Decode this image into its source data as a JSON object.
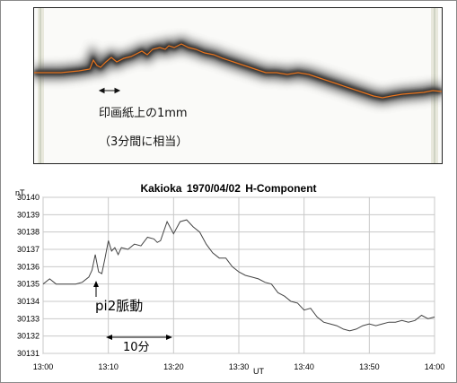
{
  "photo": {
    "caption_line1": "印画紙上の1mm",
    "caption_line2": "（3分間に相当）"
  },
  "chart_data": {
    "type": "line",
    "title": "Kakioka  1970/04/02   H-Component",
    "ylabel": "nT",
    "xlabel": "UT",
    "x_ticks": [
      "13:00",
      "13:10",
      "13:20",
      "13:30",
      "13:40",
      "13:50",
      "14:00"
    ],
    "y_ticks": [
      30131,
      30132,
      30133,
      30134,
      30135,
      30136,
      30137,
      30138,
      30139,
      30140
    ],
    "xlim": [
      "13:00",
      "14:00"
    ],
    "ylim": [
      30131,
      30140
    ],
    "grid": true,
    "series": [
      {
        "x": [
          "13:00",
          "13:01",
          "13:02",
          "13:03",
          "13:04",
          "13:05",
          "13:06",
          "13:07",
          "13:07:30",
          "13:08",
          "13:08:30",
          "13:09",
          "13:09:30",
          "13:10",
          "13:10:30",
          "13:11",
          "13:11:30",
          "13:12",
          "13:13",
          "13:14",
          "13:15",
          "13:16",
          "13:17",
          "13:17:30",
          "13:18",
          "13:19",
          "13:20",
          "13:21",
          "13:22",
          "13:23",
          "13:24",
          "13:25",
          "13:26",
          "13:27",
          "13:28",
          "13:29",
          "13:30",
          "13:31",
          "13:32",
          "13:33",
          "13:34",
          "13:35",
          "13:36",
          "13:37",
          "13:38",
          "13:39",
          "13:40",
          "13:41",
          "13:42",
          "13:43",
          "13:44",
          "13:45",
          "13:46",
          "13:47",
          "13:48",
          "13:49",
          "13:50",
          "13:51",
          "13:52",
          "13:53",
          "13:54",
          "13:55",
          "13:56",
          "13:57",
          "13:58",
          "13:59",
          "14:00"
        ],
        "values": [
          30135.0,
          30135.3,
          30135.0,
          30135.0,
          30135.0,
          30135.0,
          30135.1,
          30135.4,
          30135.8,
          30136.7,
          30135.7,
          30135.6,
          30136.5,
          30137.5,
          30136.9,
          30137.1,
          30136.7,
          30137.1,
          30137.0,
          30137.3,
          30137.2,
          30137.7,
          30137.6,
          30137.4,
          30137.5,
          30138.6,
          30137.9,
          30138.6,
          30138.7,
          30138.3,
          30138.0,
          30137.3,
          30136.8,
          30136.5,
          30136.5,
          30136.0,
          30135.7,
          30135.5,
          30135.4,
          30135.3,
          30135.1,
          30135.0,
          30134.5,
          30134.3,
          30134.0,
          30133.9,
          30133.5,
          30133.6,
          30133.1,
          30132.8,
          30132.7,
          30132.6,
          30132.4,
          30132.3,
          30132.4,
          30132.6,
          30132.7,
          30132.6,
          30132.7,
          30132.8,
          30132.8,
          30132.9,
          30132.8,
          30132.9,
          30133.2,
          30133.0,
          30133.1
        ]
      }
    ]
  },
  "annotations": {
    "pulse_label": "pi2脈動",
    "span_label": "10分"
  }
}
